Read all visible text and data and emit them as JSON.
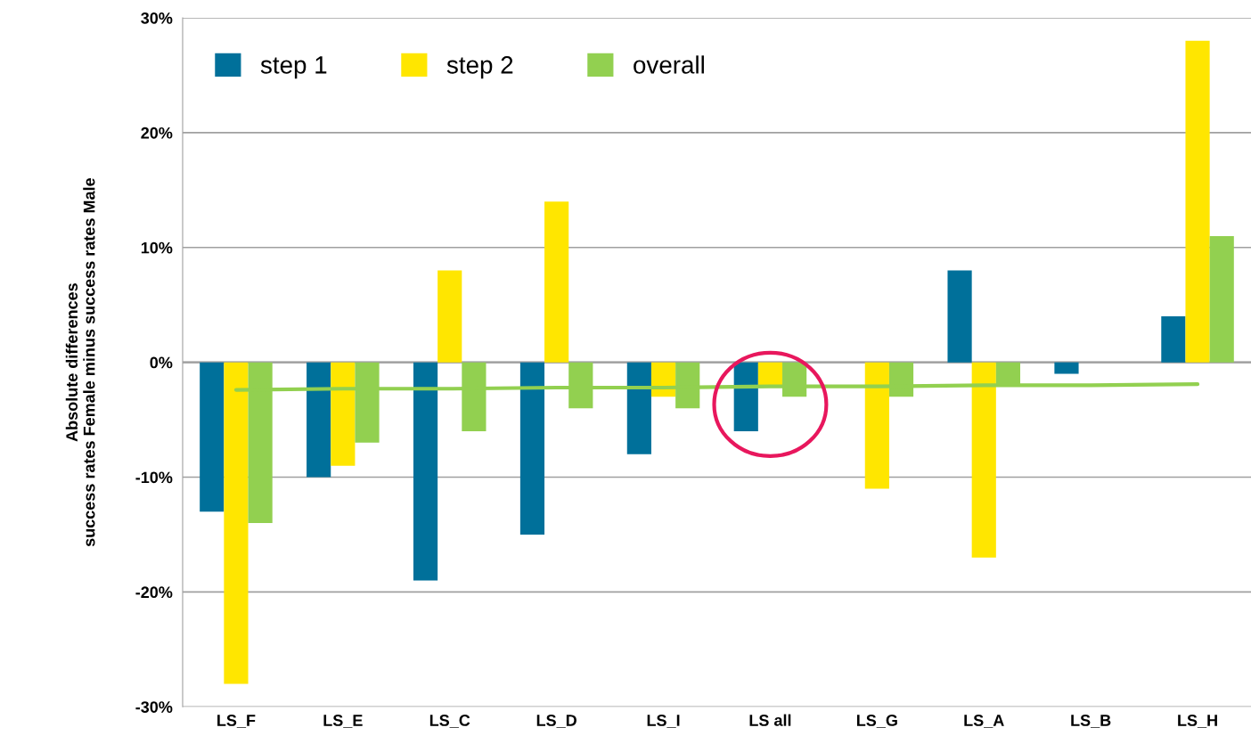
{
  "chart_data": {
    "type": "bar",
    "ylabel": "Absolute differences\nsuccess rates Female minus success rates Male",
    "categories": [
      "LS_F",
      "LS_E",
      "LS_C",
      "LS_D",
      "LS_I",
      "LS all",
      "LS_G",
      "LS_A",
      "LS_B",
      "LS_H"
    ],
    "series": [
      {
        "name": "step 1",
        "color": "#00709a",
        "values": [
          -13,
          -10,
          -19,
          -15,
          -8,
          -6,
          null,
          8,
          -1,
          4
        ]
      },
      {
        "name": "step 2",
        "color": "#ffe600",
        "values": [
          -28,
          -9,
          8,
          14,
          -3,
          -2,
          -11,
          -17,
          null,
          28
        ]
      },
      {
        "name": "overall",
        "color": "#92d050",
        "values": [
          -14,
          -7,
          -6,
          -4,
          -4,
          -3,
          -3,
          -2,
          null,
          11
        ]
      },
      {
        "type": "line",
        "color": "#92d050",
        "values": [
          -2.4,
          -2.3,
          -2.3,
          -2.2,
          -2.2,
          -2.1,
          -2.1,
          -2.0,
          -2.0,
          -1.9
        ]
      }
    ],
    "ylim": [
      -30,
      30
    ],
    "yticks": [
      {
        "value": -30,
        "label": "-30%"
      },
      {
        "value": -20,
        "label": "-20%"
      },
      {
        "value": -10,
        "label": "-10%"
      },
      {
        "value": 0,
        "label": "0%"
      },
      {
        "value": 10,
        "label": "10%"
      },
      {
        "value": 20,
        "label": "20%"
      },
      {
        "value": 30,
        "label": "30%"
      }
    ],
    "grid": "y",
    "legend": "top left"
  }
}
